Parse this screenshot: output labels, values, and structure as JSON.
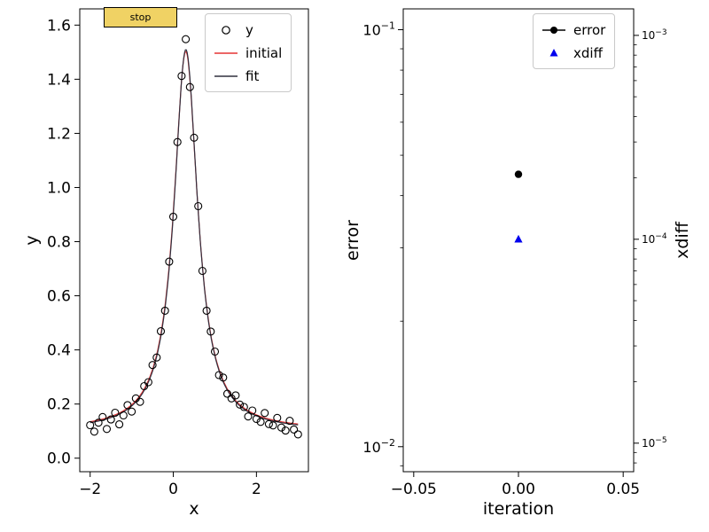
{
  "figure": {
    "background": "#ffffff"
  },
  "widgets": {
    "stop_button": {
      "label": "stop",
      "color": "#f0d264",
      "border_color": "#000000"
    }
  },
  "colors": {
    "scatter_edge": "#000000",
    "initial_line": "#e53333",
    "fit_line": "#30303f",
    "error_marker": "#000000",
    "xdiff_marker": "#0000ee"
  },
  "chart_data": [
    {
      "id": "left-plot",
      "type": "scatter",
      "title": "",
      "xlabel": "x",
      "ylabel": "y",
      "xlim": [
        -2.25,
        3.25
      ],
      "ylim": [
        -0.05,
        1.66
      ],
      "xticks": [
        -2,
        0,
        2
      ],
      "yticks": [
        0.0,
        0.2,
        0.4,
        0.6,
        0.8,
        1.0,
        1.2,
        1.4,
        1.6
      ],
      "grid": false,
      "legend_position": "upper right",
      "series": [
        {
          "name": "y",
          "type": "scatter",
          "marker": "circle-open",
          "color": "#000000",
          "x": [
            -2.0,
            -1.9,
            -1.8,
            -1.7,
            -1.6,
            -1.5,
            -1.4,
            -1.3,
            -1.2,
            -1.1,
            -1.0,
            -0.9,
            -0.8,
            -0.7,
            -0.6,
            -0.5,
            -0.4,
            -0.3,
            -0.2,
            -0.1,
            0.0,
            0.1,
            0.2,
            0.3,
            0.4,
            0.5,
            0.6,
            0.7,
            0.8,
            0.9,
            1.0,
            1.1,
            1.2,
            1.3,
            1.4,
            1.5,
            1.6,
            1.7,
            1.8,
            1.9,
            2.0,
            2.1,
            2.2,
            2.3,
            2.4,
            2.5,
            2.6,
            2.7,
            2.8,
            2.9,
            3.0
          ],
          "y": [
            0.122,
            0.098,
            0.131,
            0.152,
            0.108,
            0.143,
            0.168,
            0.125,
            0.158,
            0.196,
            0.172,
            0.221,
            0.208,
            0.266,
            0.281,
            0.344,
            0.372,
            0.469,
            0.545,
            0.726,
            0.892,
            1.168,
            1.412,
            1.548,
            1.371,
            1.184,
            0.931,
            0.692,
            0.545,
            0.468,
            0.394,
            0.307,
            0.298,
            0.238,
            0.221,
            0.232,
            0.198,
            0.189,
            0.154,
            0.176,
            0.145,
            0.134,
            0.167,
            0.126,
            0.121,
            0.149,
            0.113,
            0.102,
            0.138,
            0.106,
            0.088
          ]
        },
        {
          "name": "initial",
          "type": "line",
          "shape": "lorentzian",
          "color": "#e53333",
          "x_range": [
            -2.0,
            3.0
          ],
          "params": {
            "offset": 0.103,
            "amplitude": 1.4,
            "center": 0.3,
            "gamma": 0.35
          }
        },
        {
          "name": "fit",
          "type": "line",
          "shape": "lorentzian",
          "color": "#30303f",
          "x_range": [
            -2.0,
            3.0
          ],
          "params": {
            "offset": 0.1,
            "amplitude": 1.41,
            "center": 0.302,
            "gamma": 0.346
          }
        }
      ]
    },
    {
      "id": "right-plot",
      "type": "scatter",
      "title": "",
      "xlabel": "iteration",
      "ylabel": "error",
      "ylabel_right": "xdiff",
      "xlim": [
        -0.055,
        0.055
      ],
      "xticks": [
        -0.05,
        0.0,
        0.05
      ],
      "xtick_labels": [
        "−0.05",
        "0.00",
        "0.05"
      ],
      "left_axis": {
        "scale": "log",
        "log10_range": [
          -2.06,
          -0.95
        ],
        "tick_exponents": [
          -2,
          -1
        ]
      },
      "right_axis": {
        "scale": "log",
        "log10_range": [
          -5.14,
          -2.87
        ],
        "tick_exponents": [
          -5,
          -4,
          -3
        ]
      },
      "grid": false,
      "legend_position": "upper right",
      "series": [
        {
          "name": "error",
          "axis": "left",
          "type": "scatter",
          "marker": "circle-filled",
          "color": "#000000",
          "x": [
            0
          ],
          "y": [
            0.045
          ]
        },
        {
          "name": "xdiff",
          "axis": "right",
          "type": "scatter",
          "marker": "triangle-up",
          "color": "#0000ee",
          "x": [
            0
          ],
          "y": [
            0.0001
          ]
        }
      ]
    }
  ]
}
